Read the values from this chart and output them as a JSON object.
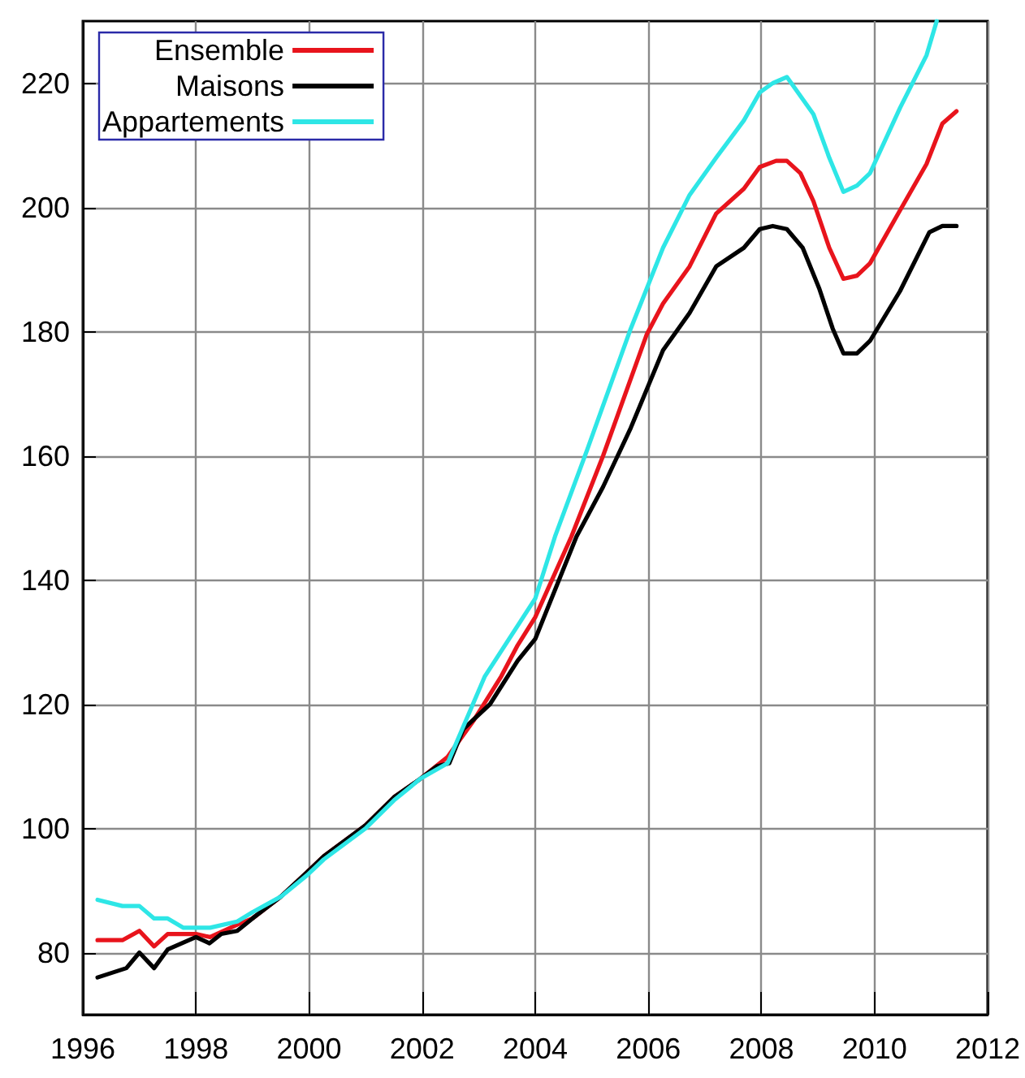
{
  "chart_data": {
    "type": "line",
    "xlim": [
      1996,
      2012
    ],
    "xticks": [
      1996,
      1998,
      2000,
      2002,
      2004,
      2006,
      2008,
      2010,
      2012
    ],
    "ylim": [
      70,
      230
    ],
    "yticks": [
      80,
      100,
      120,
      140,
      160,
      180,
      200,
      220
    ],
    "grid": true,
    "legend": "top left",
    "line_style": "solid",
    "series": [
      {
        "name": "Ensemble",
        "color": "#e8141c",
        "x": [
          1996.26,
          1996.7,
          1997.0,
          1997.26,
          1997.5,
          1998.0,
          1998.25,
          1998.73,
          1999.0,
          1999.5,
          1999.97,
          2000.26,
          2001.0,
          2001.5,
          2001.97,
          2002.45,
          2002.92,
          2003.4,
          2003.69,
          2004.0,
          2004.64,
          2005.2,
          2005.97,
          2006.26,
          2006.73,
          2007.2,
          2007.69,
          2007.97,
          2008.26,
          2008.45,
          2008.69,
          2008.92,
          2009.2,
          2009.45,
          2009.69,
          2009.92,
          2010.45,
          2010.92,
          2011.2,
          2011.45
        ],
        "values": [
          82,
          82,
          83.5,
          81,
          83,
          83,
          82.5,
          84.5,
          85.5,
          89,
          93,
          95.5,
          100.5,
          105,
          108,
          111.5,
          117.5,
          124.5,
          129.5,
          134,
          147,
          160,
          179.5,
          184.5,
          190.5,
          199,
          203,
          206.5,
          207.5,
          207.5,
          205.5,
          201,
          193.5,
          188.5,
          189,
          191,
          199.5,
          207,
          213.5,
          215.5
        ]
      },
      {
        "name": "Maisons",
        "color": "#000000",
        "x": [
          1996.26,
          1996.77,
          1997.0,
          1997.26,
          1997.5,
          1998.0,
          1998.24,
          1998.45,
          1998.73,
          1999.0,
          1999.5,
          1999.97,
          2000.26,
          2001.0,
          2001.5,
          2001.97,
          2002.26,
          2002.48,
          2002.73,
          2003.2,
          2003.69,
          2004.0,
          2004.73,
          2005.2,
          2005.69,
          2006.26,
          2006.73,
          2007.2,
          2007.69,
          2007.97,
          2008.2,
          2008.45,
          2008.73,
          2009.02,
          2009.26,
          2009.45,
          2009.69,
          2009.92,
          2010.45,
          2010.97,
          2011.2,
          2011.45
        ],
        "values": [
          76,
          77.5,
          80,
          77.5,
          80.5,
          82.5,
          81.5,
          83,
          83.5,
          85.5,
          89,
          93,
          95.5,
          100.5,
          105,
          108,
          110,
          110.5,
          116,
          120,
          127,
          130.5,
          147,
          155,
          164.5,
          177,
          183,
          190.5,
          193.5,
          196.5,
          197,
          196.5,
          193.5,
          187,
          180.5,
          176.5,
          176.5,
          178.5,
          186.5,
          196,
          197,
          197
        ]
      },
      {
        "name": "Appartements",
        "color": "#2ee6e6",
        "x": [
          1996.26,
          1996.7,
          1997.0,
          1997.26,
          1997.5,
          1997.78,
          1998.25,
          1998.73,
          1999.0,
          1999.5,
          1999.97,
          2000.26,
          2001.0,
          2001.5,
          2001.97,
          2002.45,
          2003.11,
          2004.0,
          2004.35,
          2004.92,
          2005.69,
          2006.26,
          2006.73,
          2007.2,
          2007.69,
          2007.97,
          2008.2,
          2008.45,
          2008.92,
          2009.2,
          2009.45,
          2009.69,
          2009.92,
          2010.45,
          2010.92,
          2011.1
        ],
        "values": [
          88.5,
          87.5,
          87.5,
          85.5,
          85.5,
          84,
          84,
          85,
          86.5,
          89,
          92.5,
          95,
          100,
          104.5,
          108,
          110.5,
          124.5,
          137,
          147,
          161,
          180.5,
          193.5,
          202,
          208,
          214,
          218.5,
          220,
          221,
          215,
          208,
          202.5,
          203.5,
          205.5,
          216,
          224.5,
          230
        ]
      }
    ]
  }
}
